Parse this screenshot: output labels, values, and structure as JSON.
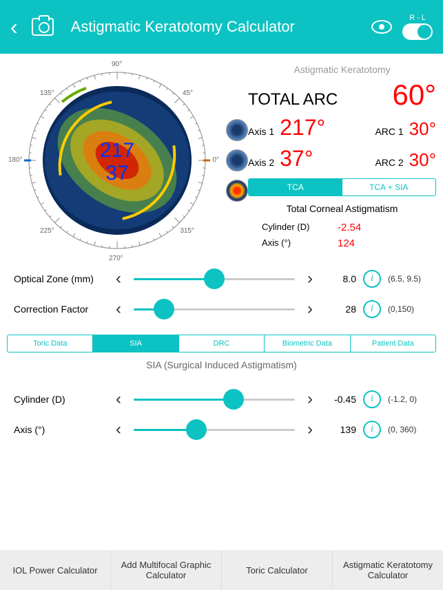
{
  "header": {
    "title": "Astigmatic Keratotomy Calculator",
    "toggle_label": "R - L"
  },
  "dial": {
    "ticks": {
      "0": "0°",
      "45": "45°",
      "90": "90°",
      "135": "135°",
      "180": "180°",
      "225": "225°",
      "270": "270°",
      "315": "315°"
    },
    "axis1_display": "217",
    "axis2_display": "37",
    "colors": {
      "ring": "#888",
      "iris_outer": "#1a3a6b",
      "iris_mid": "#2d5aa0",
      "heat1": "#ffee00",
      "heat2": "#ff7700",
      "heat3": "#cc0000",
      "axis_text": "#0033ff"
    }
  },
  "results": {
    "title": "Astigmatic Keratotomy",
    "total_label": "TOTAL ARC",
    "total_value": "60°",
    "axis1_label": "Axis 1",
    "axis1_value": "217°",
    "arc1_label": "ARC 1",
    "arc1_value": "30°",
    "axis2_label": "Axis 2",
    "axis2_value": "37°",
    "arc2_label": "ARC 2",
    "arc2_value": "30°",
    "seg1": "TCA",
    "seg2": "TCA + SIA",
    "tca_title": "Total Corneal Astigmatism",
    "cyl_label": "Cylinder (D)",
    "cyl_value": "-2.54",
    "axis_label": "Axis (°)",
    "axis_value": "124"
  },
  "sliders_top": [
    {
      "label": "Optical Zone (mm)",
      "value": "8.0",
      "range": "(6.5, 9.5)",
      "pct": 50
    },
    {
      "label": "Correction Factor",
      "value": "28",
      "range": "(0,150)",
      "pct": 19
    }
  ],
  "tabs": [
    "Toric Data",
    "SIA",
    "DRC",
    "Biometric Data",
    "Patient Data"
  ],
  "active_tab": 1,
  "section_title": "SIA (Surgical Induced Astigmatism)",
  "sliders_bottom": [
    {
      "label": "Cylinder (D)",
      "value": "-0.45",
      "range": "(-1.2, 0)",
      "pct": 62
    },
    {
      "label": "Axis (°)",
      "value": "139",
      "range": "(0, 360)",
      "pct": 39
    }
  ],
  "bottom_nav": [
    "IOL Power Calculator",
    "Add Multifocal Graphic Calculator",
    "Toric Calculator",
    "Astigmatic Keratotomy Calculator"
  ]
}
